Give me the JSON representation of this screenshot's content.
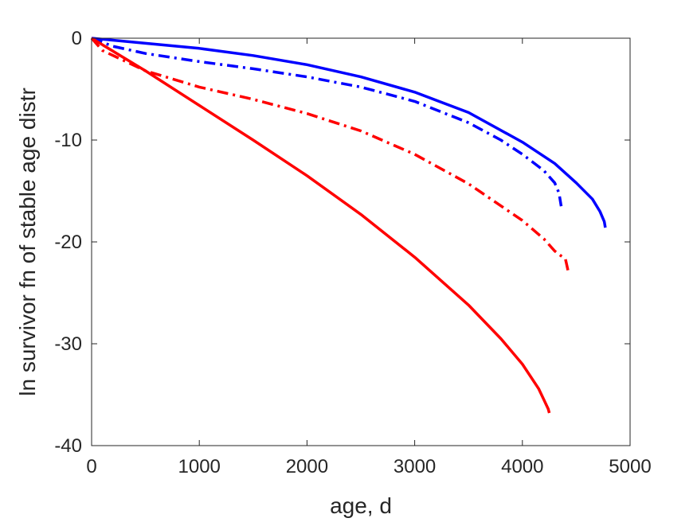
{
  "chart_data": {
    "type": "line",
    "xlabel": "age, d",
    "ylabel": "ln survivor fn of stable age distr",
    "xlim": [
      0,
      5000
    ],
    "ylim": [
      -40,
      0
    ],
    "xticks": [
      0,
      1000,
      2000,
      3000,
      4000,
      5000
    ],
    "yticks": [
      0,
      -10,
      -20,
      -30,
      -40
    ],
    "xtick_labels": [
      "0",
      "1000",
      "2000",
      "3000",
      "4000",
      "5000"
    ],
    "ytick_labels": [
      "0",
      "-10",
      "-20",
      "-30",
      "-40"
    ],
    "grid": false,
    "legend": "none",
    "series": [
      {
        "color": "#0000ff",
        "style": "solid",
        "points": [
          [
            0,
            0
          ],
          [
            500,
            -0.5
          ],
          [
            1000,
            -1.0
          ],
          [
            1500,
            -1.7
          ],
          [
            2000,
            -2.6
          ],
          [
            2500,
            -3.8
          ],
          [
            3000,
            -5.3
          ],
          [
            3500,
            -7.3
          ],
          [
            4000,
            -10.2
          ],
          [
            4300,
            -12.3
          ],
          [
            4500,
            -14.2
          ],
          [
            4650,
            -15.8
          ],
          [
            4720,
            -17.0
          ],
          [
            4760,
            -18.0
          ],
          [
            4770,
            -18.6
          ]
        ]
      },
      {
        "color": "#0000ff",
        "style": "dashdot",
        "points": [
          [
            0,
            0
          ],
          [
            200,
            -0.8
          ],
          [
            500,
            -1.5
          ],
          [
            1000,
            -2.3
          ],
          [
            1500,
            -3.0
          ],
          [
            2000,
            -3.8
          ],
          [
            2500,
            -4.8
          ],
          [
            3000,
            -6.2
          ],
          [
            3500,
            -8.3
          ],
          [
            3800,
            -10.0
          ],
          [
            4000,
            -11.4
          ],
          [
            4200,
            -13.0
          ],
          [
            4300,
            -14.2
          ],
          [
            4340,
            -15.2
          ],
          [
            4360,
            -16.5
          ]
        ]
      },
      {
        "color": "#ff0000",
        "style": "dashdot",
        "points": [
          [
            0,
            0
          ],
          [
            100,
            -1.2
          ],
          [
            300,
            -2.2
          ],
          [
            500,
            -3.2
          ],
          [
            1000,
            -4.8
          ],
          [
            1500,
            -6.0
          ],
          [
            2000,
            -7.4
          ],
          [
            2500,
            -9.1
          ],
          [
            3000,
            -11.4
          ],
          [
            3500,
            -14.3
          ],
          [
            4000,
            -17.9
          ],
          [
            4200,
            -19.7
          ],
          [
            4300,
            -20.9
          ],
          [
            4400,
            -21.7
          ],
          [
            4430,
            -23.1
          ]
        ]
      },
      {
        "color": "#ff0000",
        "style": "solid",
        "points": [
          [
            0,
            0
          ],
          [
            500,
            -3.2
          ],
          [
            1000,
            -6.6
          ],
          [
            1500,
            -10.0
          ],
          [
            2000,
            -13.5
          ],
          [
            2500,
            -17.3
          ],
          [
            3000,
            -21.5
          ],
          [
            3500,
            -26.2
          ],
          [
            3800,
            -29.5
          ],
          [
            4000,
            -32.0
          ],
          [
            4150,
            -34.4
          ],
          [
            4200,
            -35.5
          ],
          [
            4240,
            -36.4
          ],
          [
            4250,
            -36.8
          ]
        ]
      }
    ]
  }
}
